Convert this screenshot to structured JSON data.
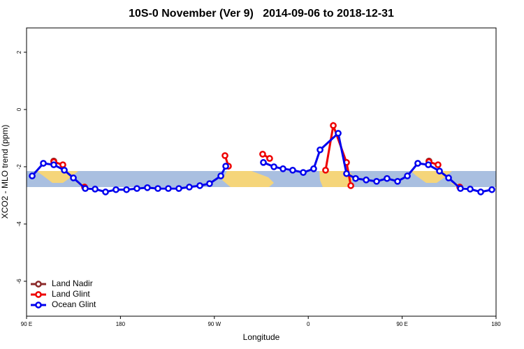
{
  "chart_data": {
    "type": "line",
    "title": "10S-0 November (Ver 9)   2014-09-06 to 2018-12-31",
    "xlabel": "Longitude",
    "ylabel": "XCO2 - MLO trend (ppm)",
    "xlim": [
      90,
      540
    ],
    "ylim": [
      -7.22,
      2.85
    ],
    "xticks": [
      {
        "value": 90,
        "label": "90 E"
      },
      180,
      {
        "value": 270,
        "label": "90 W"
      },
      {
        "value": 360,
        "label": "0"
      },
      {
        "value": 450,
        "label": "90 E"
      },
      {
        "value": 540,
        "label": "180"
      }
    ],
    "yticks": [
      -6,
      -4,
      -2,
      0,
      2
    ],
    "legend": "bottom-left",
    "series": [
      {
        "name": "Land Nadir",
        "color": "#8b2a2a",
        "x": [
          116.1,
          null,
          475.7
        ],
        "values": [
          -1.8,
          null,
          -1.8
        ]
      },
      {
        "name": "Land Glint",
        "color": "#ee0000",
        "x": [
          116.1,
          124.8,
          null,
          145.6,
          null,
          280.2,
          283.5,
          null,
          316.3,
          323.0,
          null,
          376.6,
          384.0,
          396.7,
          400.8,
          null,
          475.7,
          484.4,
          null,
          505.2
        ],
        "values": [
          -1.83,
          -1.93,
          null,
          -2.71,
          null,
          -1.61,
          -1.98,
          null,
          -1.56,
          -1.71,
          null,
          -2.12,
          -0.56,
          -1.85,
          -2.66,
          null,
          -1.83,
          -1.93,
          null,
          -2.71
        ]
      },
      {
        "name": "Ocean Glint",
        "color": "#0000ee",
        "x": [
          95.4,
          106.1,
          116.1,
          126.2,
          134.9,
          146.3,
          155.7,
          165.7,
          175.7,
          185.8,
          195.8,
          205.8,
          215.9,
          225.9,
          236.0,
          246.0,
          256.1,
          265.4,
          276.2,
          280.9,
          null,
          317.0,
          327.1,
          335.8,
          345.1,
          355.2,
          365.2,
          371.3,
          388.7,
          396.7,
          405.4,
          415.5,
          425.5,
          435.5,
          445.6,
          455.0,
          465.0,
          475.1,
          485.8,
          494.5,
          505.9,
          515.2,
          525.3,
          536.0
        ],
        "values": [
          -2.32,
          -1.88,
          -1.93,
          -2.12,
          -2.39,
          -2.76,
          -2.78,
          -2.88,
          -2.8,
          -2.8,
          -2.76,
          -2.73,
          -2.76,
          -2.76,
          -2.76,
          -2.71,
          -2.66,
          -2.59,
          -2.32,
          -1.98,
          null,
          -1.85,
          -2.0,
          -2.07,
          -2.12,
          -2.2,
          -2.07,
          -1.41,
          -0.83,
          -2.24,
          -2.41,
          -2.46,
          -2.51,
          -2.41,
          -2.51,
          -2.32,
          -1.88,
          -1.93,
          -2.15,
          -2.39,
          -2.76,
          -2.78,
          -2.88,
          -2.8
        ]
      }
    ]
  }
}
